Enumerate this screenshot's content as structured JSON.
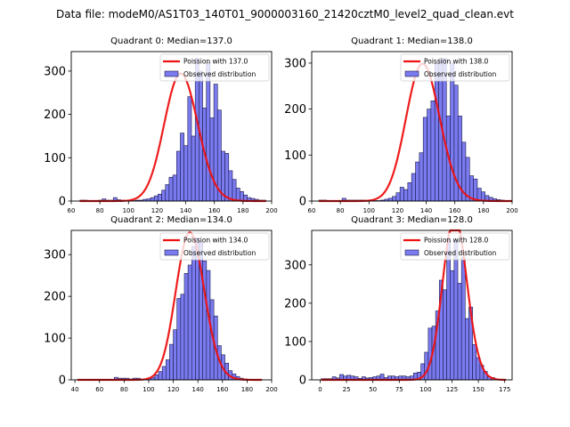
{
  "suptitle": "Data file: modeM0/AS1T03_140T01_9000003160_21420cztM0_level2_quad_clean.evt",
  "colors": {
    "bar_fill": "#7b7bf0",
    "bar_edge": "#1a1a4a",
    "poisson_line": "#ee1111"
  },
  "chart_data": [
    {
      "type": "bar",
      "title": "Quadrant 0: Median=137.0",
      "legend": [
        "Poission with 137.0",
        "Observed distribution"
      ],
      "legend_position": "top-right",
      "xlim": [
        60,
        200
      ],
      "ylim": [
        0,
        345
      ],
      "xticks": [
        60,
        80,
        100,
        120,
        140,
        160,
        180,
        200
      ],
      "yticks": [
        0,
        100,
        200,
        300
      ],
      "median": 137.0,
      "bin_start": 66,
      "bin_width": 2.6,
      "values": [
        2,
        2,
        1,
        1,
        1,
        2,
        5,
        2,
        2,
        8,
        3,
        2,
        1,
        1,
        1,
        2,
        2,
        4,
        5,
        8,
        12,
        16,
        25,
        38,
        55,
        60,
        115,
        157,
        128,
        241,
        150,
        330,
        300,
        215,
        320,
        192,
        270,
        210,
        115,
        110,
        70,
        50,
        30,
        22,
        14,
        8,
        6,
        4,
        2,
        2
      ]
    },
    {
      "type": "bar",
      "title": "Quadrant 1: Median=138.0",
      "legend": [
        "Poission with 138.0",
        "Observed distribution"
      ],
      "legend_position": "top-right",
      "xlim": [
        60,
        200
      ],
      "ylim": [
        0,
        325
      ],
      "xticks": [
        60,
        80,
        100,
        120,
        140,
        160,
        180,
        200
      ],
      "yticks": [
        0,
        100,
        200,
        300
      ],
      "median": 138.0,
      "bin_start": 65,
      "bin_width": 2.7,
      "values": [
        2,
        2,
        1,
        1,
        1,
        1,
        6,
        2,
        2,
        2,
        2,
        2,
        1,
        1,
        1,
        1,
        2,
        4,
        6,
        10,
        18,
        30,
        25,
        40,
        60,
        85,
        105,
        182,
        200,
        218,
        300,
        310,
        310,
        185,
        300,
        252,
        185,
        128,
        95,
        55,
        48,
        28,
        20,
        12,
        8,
        5,
        3,
        2,
        1,
        1
      ]
    },
    {
      "type": "bar",
      "title": "Quadrant 2: Median=134.0",
      "legend": [
        "Poission with 134.0",
        "Observed distribution"
      ],
      "legend_position": "top-right",
      "xlim": [
        37,
        200
      ],
      "ylim": [
        0,
        358
      ],
      "xticks": [
        40,
        60,
        80,
        100,
        120,
        140,
        160,
        180,
        200
      ],
      "yticks": [
        0,
        100,
        200,
        300
      ],
      "median": 134.0,
      "bin_start": 42,
      "bin_width": 3.0,
      "values": [
        1,
        1,
        1,
        1,
        1,
        1,
        1,
        1,
        1,
        1,
        6,
        4,
        4,
        4,
        2,
        4,
        4,
        2,
        2,
        4,
        6,
        12,
        20,
        32,
        48,
        85,
        120,
        195,
        205,
        255,
        275,
        320,
        340,
        330,
        285,
        262,
        192,
        153,
        82,
        60,
        40,
        22,
        14,
        8,
        4,
        2,
        1,
        1,
        1,
        1
      ]
    },
    {
      "type": "bar",
      "title": "Quadrant 3: Median=128.0",
      "legend": [
        "Poission with 128.0",
        "Observed distribution"
      ],
      "legend_position": "top-right",
      "xlim": [
        -8,
        182
      ],
      "ylim": [
        0,
        390
      ],
      "xticks": [
        0,
        25,
        50,
        75,
        100,
        125,
        150,
        175
      ],
      "yticks": [
        0,
        100,
        200,
        300
      ],
      "median": 128.0,
      "bin_start": 1,
      "bin_width": 3.5,
      "values": [
        3,
        3,
        3,
        8,
        5,
        14,
        10,
        12,
        10,
        8,
        4,
        8,
        5,
        6,
        8,
        10,
        15,
        6,
        10,
        10,
        8,
        10,
        10,
        8,
        10,
        18,
        20,
        42,
        72,
        135,
        140,
        180,
        260,
        235,
        370,
        285,
        365,
        252,
        320,
        160,
        190,
        92,
        58,
        38,
        22,
        8,
        6,
        2,
        1,
        1
      ]
    }
  ]
}
